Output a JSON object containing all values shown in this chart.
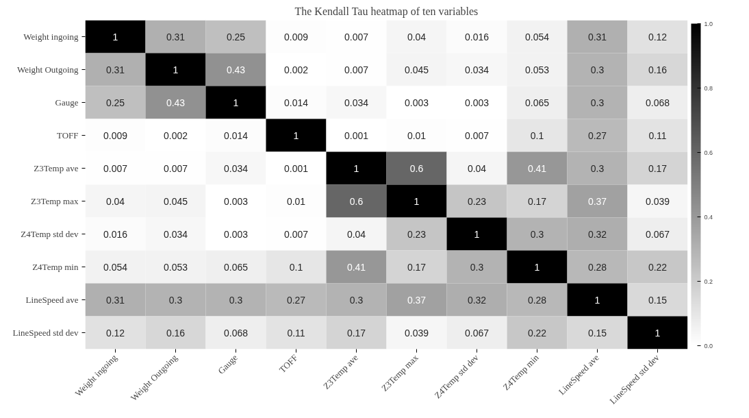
{
  "chart_data": {
    "type": "heatmap",
    "title": "The Kendall Tau heatmap of ten variables",
    "categories": [
      "Weight ingoing",
      "Weight Outgoing",
      "Gauge",
      "TOFF",
      "Z3Temp ave",
      "Z3Temp max",
      "Z4Temp std dev",
      "Z4Temp min",
      "LineSpeed ave",
      "LineSpeed std dev"
    ],
    "y_categories": [
      "Weight ingoing",
      "Weight Outgoing",
      "Gauge",
      "TOFF",
      "Z3Temp ave",
      "Z3Temp max",
      "Z4Temp std dev",
      "Z4Temp min",
      "LineSpeed ave",
      "LineSpeed std dev"
    ],
    "cells": [
      [
        1,
        0.31,
        0.25,
        0.009,
        0.007,
        0.04,
        0.016,
        0.054,
        0.31,
        0.12
      ],
      [
        0.31,
        1,
        0.43,
        0.002,
        0.007,
        0.045,
        0.034,
        0.053,
        0.3,
        0.16
      ],
      [
        0.25,
        0.43,
        1,
        0.014,
        0.034,
        0.003,
        0.003,
        0.065,
        0.3,
        0.068
      ],
      [
        0.009,
        0.002,
        0.014,
        1,
        0.001,
        0.01,
        0.007,
        0.1,
        0.27,
        0.11
      ],
      [
        0.007,
        0.007,
        0.034,
        0.001,
        1,
        0.6,
        0.04,
        0.41,
        0.3,
        0.17
      ],
      [
        0.04,
        0.045,
        0.003,
        0.01,
        0.6,
        1,
        0.23,
        0.17,
        0.37,
        0.039
      ],
      [
        0.016,
        0.034,
        0.003,
        0.007,
        0.04,
        0.23,
        1,
        0.3,
        0.32,
        0.067
      ],
      [
        0.054,
        0.053,
        0.065,
        0.1,
        0.41,
        0.17,
        0.3,
        1,
        0.28,
        0.22
      ],
      [
        0.31,
        0.3,
        0.3,
        0.27,
        0.3,
        0.37,
        0.32,
        0.28,
        1,
        0.15
      ],
      [
        0.12,
        0.16,
        0.068,
        0.11,
        0.17,
        0.039,
        0.067,
        0.22,
        0.15,
        1
      ]
    ],
    "clim": [
      0,
      1
    ],
    "cticks": [
      {
        "value": 0,
        "label": "0.0"
      },
      {
        "value": 0.2,
        "label": "0.2"
      },
      {
        "value": 0.4,
        "label": "0.4"
      },
      {
        "value": 0.6,
        "label": "0.6"
      },
      {
        "value": 0.8,
        "label": "0.8"
      },
      {
        "value": 1,
        "label": "1.0"
      }
    ],
    "data_labels": true
  }
}
